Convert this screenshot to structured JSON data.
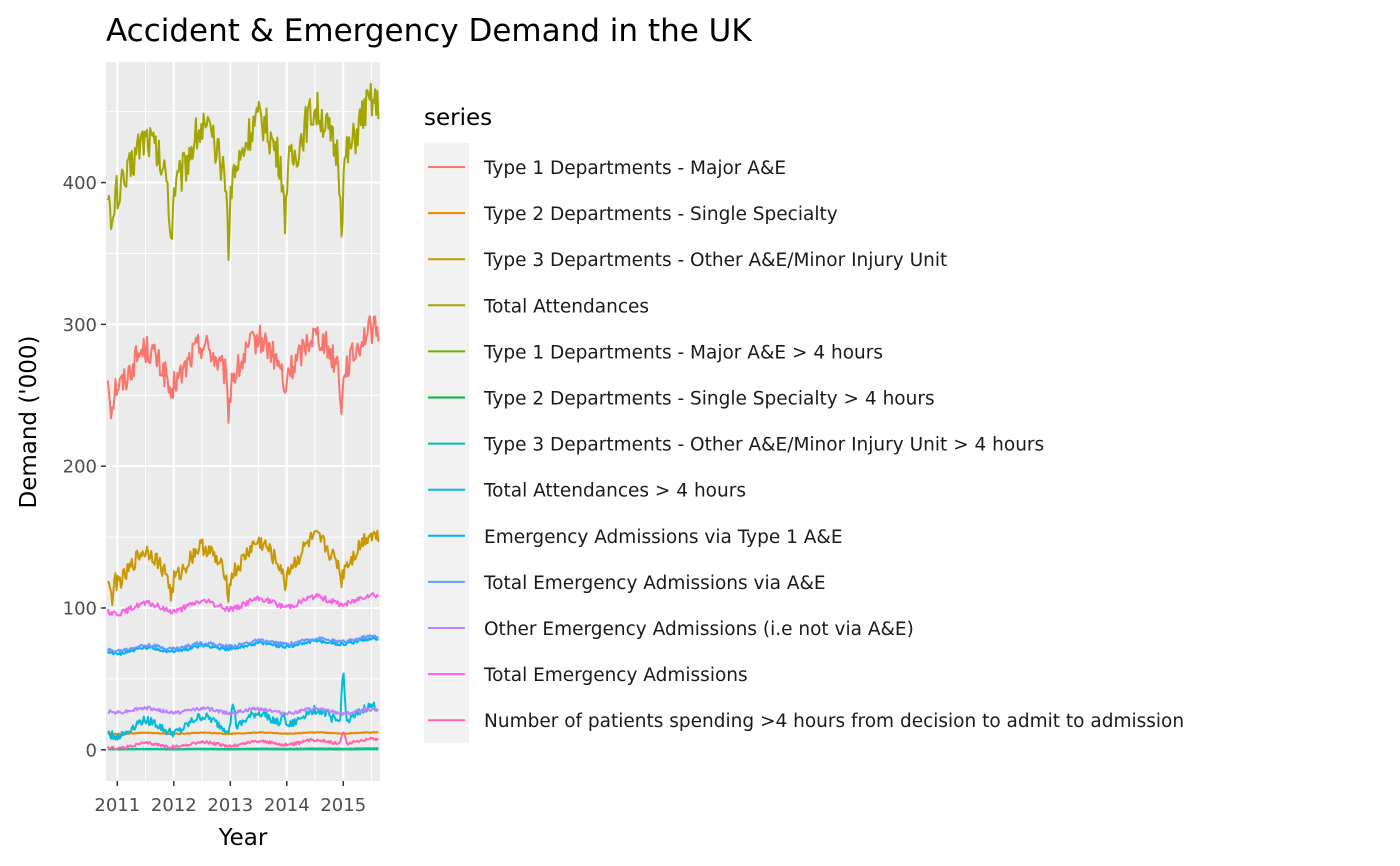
{
  "chart_data": {
    "type": "line",
    "title": "Accident & Emergency Demand in the UK",
    "xlabel": "Year",
    "ylabel": "Demand ('000)",
    "xlim": [
      2010.8,
      2015.65
    ],
    "ylim": [
      -22,
      485
    ],
    "x_ticks": [
      2011,
      2012,
      2013,
      2014,
      2015
    ],
    "y_ticks": [
      0,
      100,
      200,
      300,
      400
    ],
    "grid": true,
    "legend_title": "series",
    "legend_position": "right",
    "x_start": 2010.833,
    "x_step": 0.019231,
    "series": [
      {
        "name": "Type 1 Departments - Major A&E",
        "color": "#F8766D",
        "base": 268,
        "amp": 12,
        "trend": 3.5,
        "noise": 10,
        "dips": [
          [
            2010.9,
            -20
          ],
          [
            2011.95,
            -22
          ],
          [
            2012.97,
            -26
          ],
          [
            2013.96,
            -22
          ],
          [
            2014.97,
            -30
          ]
        ]
      },
      {
        "name": "Type 2 Departments - Single Specialty",
        "color": "#E58700",
        "base": 11.5,
        "amp": 0.4,
        "trend": 0.1,
        "noise": 0.3,
        "dips": []
      },
      {
        "name": "Type 3 Departments - Other A&E/Minor Injury Unit",
        "color": "#C99800",
        "base": 128,
        "amp": 10,
        "trend": 3,
        "noise": 6,
        "dips": [
          [
            2010.9,
            -15
          ],
          [
            2011.95,
            -15
          ],
          [
            2012.97,
            -16
          ],
          [
            2013.96,
            -14
          ],
          [
            2014.97,
            -12
          ]
        ]
      },
      {
        "name": "Total Attendances",
        "color": "#A3A500",
        "base": 410,
        "amp": 18,
        "trend": 6,
        "noise": 14,
        "dips": [
          [
            2010.9,
            -40
          ],
          [
            2011.95,
            -40
          ],
          [
            2012.97,
            -50
          ],
          [
            2013.96,
            -40
          ],
          [
            2014.97,
            -45
          ]
        ]
      },
      {
        "name": "Type 1 Departments - Major A&E > 4 hours",
        "color": "#6BB100",
        "base": 0.5,
        "amp": 0.1,
        "trend": 0.1,
        "noise": 0.1,
        "dips": []
      },
      {
        "name": "Type 2 Departments - Single Specialty > 4 hours",
        "color": "#00BA38",
        "base": 0.3,
        "amp": 0.05,
        "trend": 0,
        "noise": 0.05,
        "dips": []
      },
      {
        "name": "Type 3 Departments - Other A&E/Minor Injury Unit > 4 hours",
        "color": "#00C0AF",
        "base": 0.4,
        "amp": 0.05,
        "trend": 0,
        "noise": 0.05,
        "dips": []
      },
      {
        "name": "Total Attendances > 4 hours",
        "color": "#00BCD8",
        "base": 14,
        "amp": 5,
        "trend": 2.5,
        "noise": 3,
        "dips": [
          [
            2015.0,
            38
          ],
          [
            2013.05,
            20
          ],
          [
            2013.95,
            10
          ]
        ]
      },
      {
        "name": "Emergency Admissions via Type 1 A&E",
        "color": "#00B0F6",
        "base": 69,
        "amp": 1.5,
        "trend": 1.7,
        "noise": 1.2,
        "dips": []
      },
      {
        "name": "Total Emergency Admissions via A&E",
        "color": "#619CFF",
        "base": 71,
        "amp": 1.5,
        "trend": 1.6,
        "noise": 1.2,
        "dips": []
      },
      {
        "name": "Other Emergency Admissions (i.e not via A&E)",
        "color": "#B983FF",
        "base": 28,
        "amp": 1.5,
        "trend": -0.2,
        "noise": 1.2,
        "dips": []
      },
      {
        "name": "Total Emergency Admissions",
        "color": "#F564E3",
        "base": 99,
        "amp": 3,
        "trend": 1.6,
        "noise": 2,
        "dips": []
      },
      {
        "name": "Number of patients spending >4 hours from decision to admit to admission",
        "color": "#FF64B0",
        "base": 2.5,
        "amp": 1.5,
        "trend": 0.8,
        "noise": 1,
        "dips": [
          [
            2015.0,
            10
          ]
        ]
      }
    ]
  }
}
